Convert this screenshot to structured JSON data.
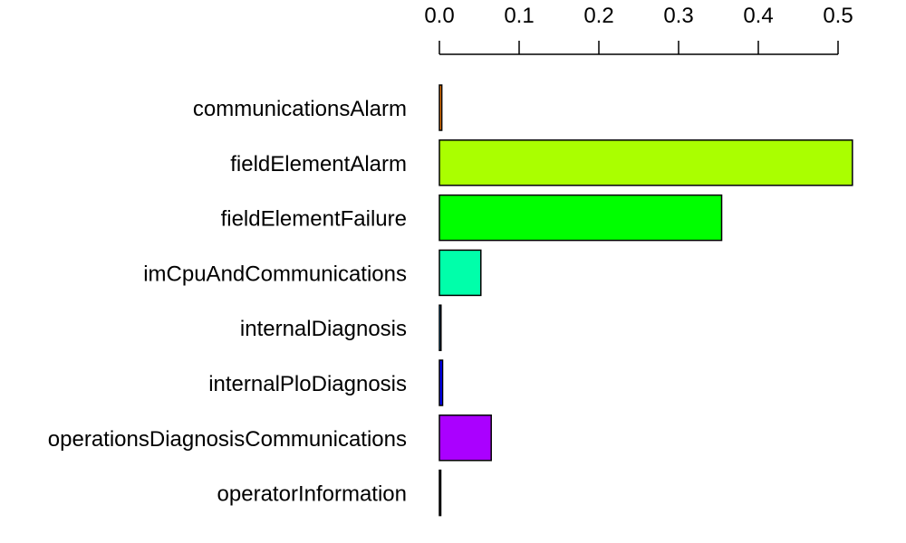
{
  "chart_data": {
    "type": "bar",
    "orientation": "horizontal",
    "title": "",
    "xlabel": "",
    "ylabel": "",
    "xlim": [
      0,
      0.52
    ],
    "axis_position": "top",
    "grid": false,
    "legend": "none",
    "ticks": [
      "0.0",
      "0.1",
      "0.2",
      "0.3",
      "0.4",
      "0.5"
    ],
    "tick_values": [
      0.0,
      0.1,
      0.2,
      0.3,
      0.4,
      0.5
    ],
    "categories": [
      "communicationsAlarm",
      "fieldElementAlarm",
      "fieldElementFailure",
      "imCpuAndCommunications",
      "internalDiagnosis",
      "internalPloDiagnosis",
      "operationsDiagnosisCommunications",
      "operatorInformation"
    ],
    "values": [
      0.003,
      0.518,
      0.354,
      0.052,
      0.002,
      0.004,
      0.065,
      0.001
    ],
    "colors": [
      "#FF8000",
      "#AAFF00",
      "#00FF00",
      "#00FFAA",
      "#00AAFF",
      "#0000FF",
      "#AA00FF",
      "#FF00AA"
    ]
  }
}
